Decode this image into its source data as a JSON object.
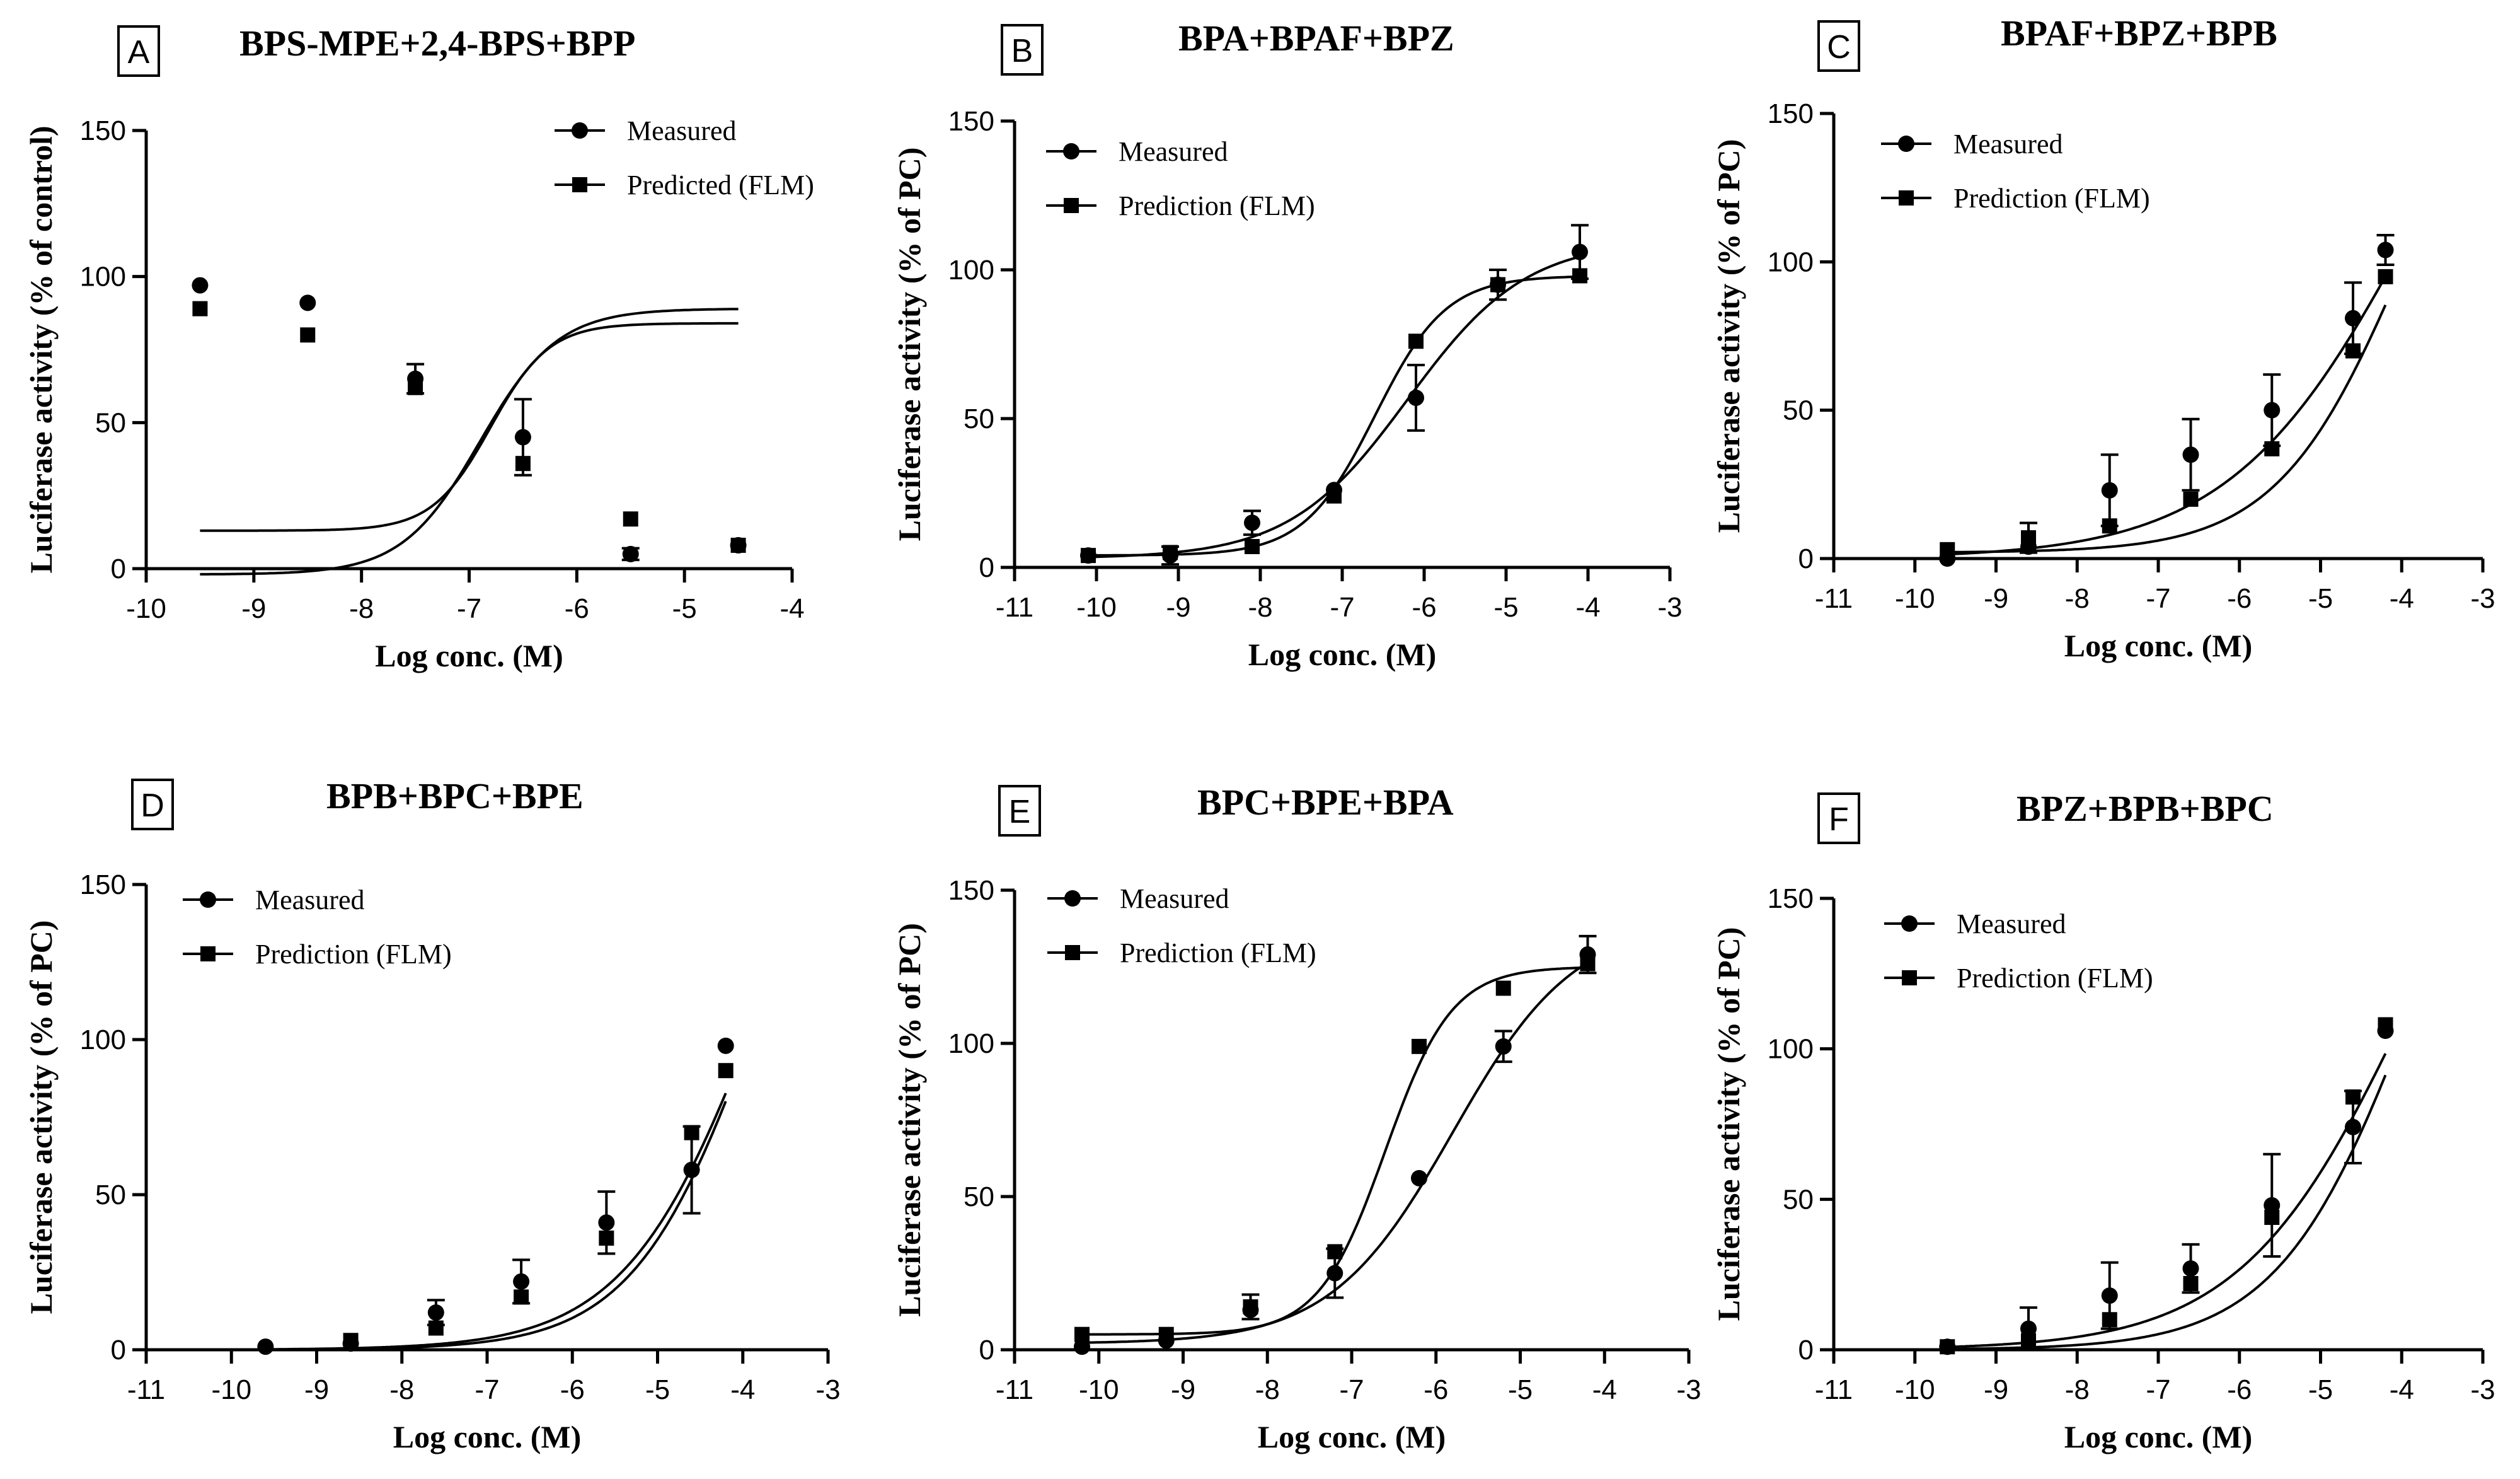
{
  "figure": {
    "curve_color": "#000000",
    "marker_color": "#000000",
    "background": "#ffffff"
  },
  "chart_data": [
    {
      "type": "scatter",
      "panel": "A",
      "title": "BPS-MPE+2,4-BPS+BPP",
      "xlabel": "Log conc. (M)",
      "ylabel": "Luciferase activity (% of control)",
      "xlim": [
        -10,
        -4
      ],
      "ylim": [
        0,
        150
      ],
      "xticks": [
        -10,
        -9,
        -8,
        -7,
        -6,
        -5,
        -4
      ],
      "yticks": [
        0,
        50,
        100,
        150
      ],
      "legend_position": "top-right",
      "series": [
        {
          "name": "Measured",
          "marker": "circle",
          "x": [
            -9.5,
            -8.5,
            -7.5,
            -6.5,
            -5.5,
            -4.5
          ],
          "y": [
            97,
            91,
            65,
            45,
            5,
            8
          ],
          "error": [
            0,
            0,
            5,
            13,
            2,
            0
          ],
          "fit": {
            "model": "hill",
            "bottom": 13,
            "top": 84,
            "logEC50": -6.8,
            "slope": 1.6
          }
        },
        {
          "name": "Predicted (FLM)",
          "marker": "square",
          "x": [
            -9.5,
            -8.5,
            -7.5,
            -6.5,
            -5.5,
            -4.5
          ],
          "y": [
            89,
            80,
            62,
            36,
            17,
            8
          ],
          "error": [
            0,
            0,
            0,
            0,
            0,
            0
          ],
          "fit": {
            "model": "hill",
            "bottom": -2,
            "top": 89,
            "logEC50": -6.9,
            "slope": 1.2
          }
        }
      ]
    },
    {
      "type": "scatter",
      "panel": "B",
      "title": "BPA+BPAF+BPZ",
      "xlabel": "Log conc. (M)",
      "ylabel": "Luciferase activity (% of PC)",
      "xlim": [
        -11,
        -3
      ],
      "ylim": [
        0,
        150
      ],
      "xticks": [
        -11,
        -10,
        -9,
        -8,
        -7,
        -6,
        -5,
        -4,
        -3
      ],
      "yticks": [
        0,
        50,
        100,
        150
      ],
      "legend_position": "top-left",
      "series": [
        {
          "name": "Measured",
          "marker": "circle",
          "x": [
            -10.1,
            -9.1,
            -8.1,
            -7.1,
            -6.1,
            -5.1,
            -4.1
          ],
          "y": [
            4,
            4,
            15,
            26,
            57,
            95,
            106
          ],
          "error": [
            0,
            3,
            4,
            0,
            11,
            5,
            9
          ],
          "fit": {
            "model": "hill",
            "bottom": 3,
            "top": 110,
            "logEC50": -6.2,
            "slope": 0.6
          }
        },
        {
          "name": "Prediction (FLM)",
          "marker": "square",
          "x": [
            -10.1,
            -9.1,
            -8.1,
            -7.1,
            -6.1,
            -5.1,
            -4.1
          ],
          "y": [
            4,
            5,
            7,
            24,
            76,
            95,
            98
          ],
          "error": [
            0,
            0,
            0,
            0,
            0,
            0,
            0
          ],
          "fit": {
            "model": "hill",
            "bottom": 4,
            "top": 98,
            "logEC50": -6.6,
            "slope": 1.0
          }
        }
      ]
    },
    {
      "type": "scatter",
      "panel": "C",
      "title": "BPAF+BPZ+BPB",
      "xlabel": "Log conc. (M)",
      "ylabel": "Luciferase activity (% of PC)",
      "xlim": [
        -11,
        -3
      ],
      "ylim": [
        0,
        150
      ],
      "xticks": [
        -11,
        -10,
        -9,
        -8,
        -7,
        -6,
        -5,
        -4,
        -3
      ],
      "yticks": [
        0,
        50,
        100,
        150
      ],
      "legend_position": "top-left",
      "series": [
        {
          "name": "Measured",
          "marker": "circle",
          "x": [
            -9.6,
            -8.6,
            -7.6,
            -6.6,
            -5.6,
            -4.6,
            -4.2
          ],
          "y": [
            0,
            4,
            23,
            35,
            50,
            81,
            104
          ],
          "error": [
            0,
            0,
            12,
            12,
            12,
            12,
            5
          ],
          "fit": {
            "model": "hill",
            "bottom": 0,
            "top": 230,
            "logEC50": -3.8,
            "slope": 0.38
          }
        },
        {
          "name": "Prediction (FLM)",
          "marker": "square",
          "x": [
            -9.6,
            -8.6,
            -7.6,
            -6.6,
            -5.6,
            -4.6,
            -4.2
          ],
          "y": [
            3,
            7,
            11,
            20,
            37,
            70,
            95
          ],
          "error": [
            0,
            5,
            0,
            0,
            0,
            0,
            0
          ],
          "fit": {
            "model": "hill",
            "bottom": 2,
            "top": 200,
            "logEC50": -3.95,
            "slope": 0.55
          }
        }
      ]
    },
    {
      "type": "scatter",
      "panel": "D",
      "title": "BPB+BPC+BPE",
      "xlabel": "Log conc. (M)",
      "ylabel": "Luciferase activity (% of PC)",
      "xlim": [
        -11,
        -3
      ],
      "ylim": [
        0,
        150
      ],
      "xticks": [
        -11,
        -10,
        -9,
        -8,
        -7,
        -6,
        -5,
        -4,
        -3
      ],
      "yticks": [
        0,
        50,
        100,
        150
      ],
      "legend_position": "top-left",
      "series": [
        {
          "name": "Measured",
          "marker": "circle",
          "x": [
            -9.6,
            -8.6,
            -7.6,
            -6.6,
            -5.6,
            -4.6,
            -4.2
          ],
          "y": [
            1,
            2,
            12,
            22,
            41,
            58,
            98
          ],
          "error": [
            0,
            0,
            4,
            7,
            10,
            14,
            0
          ],
          "fit": {
            "model": "hill",
            "bottom": 0,
            "top": 220,
            "logEC50": -3.8,
            "slope": 0.55
          }
        },
        {
          "name": "Prediction (FLM)",
          "marker": "square",
          "x": [
            -8.6,
            -7.6,
            -6.6,
            -5.6,
            -4.6,
            -4.2
          ],
          "y": [
            3,
            7,
            17,
            36,
            70,
            90
          ],
          "error": [
            0,
            0,
            0,
            0,
            0,
            0
          ],
          "fit": {
            "model": "hill",
            "bottom": 0,
            "top": 210,
            "logEC50": -3.85,
            "slope": 0.6
          }
        }
      ]
    },
    {
      "type": "scatter",
      "panel": "E",
      "title": "BPC+BPE+BPA",
      "xlabel": "Log conc. (M)",
      "ylabel": "Luciferase activity (% of PC)",
      "xlim": [
        -11,
        -3
      ],
      "ylim": [
        0,
        150
      ],
      "xticks": [
        -11,
        -10,
        -9,
        -8,
        -7,
        -6,
        -5,
        -4,
        -3
      ],
      "yticks": [
        0,
        50,
        100,
        150
      ],
      "legend_position": "top-left",
      "series": [
        {
          "name": "Measured",
          "marker": "circle",
          "x": [
            -10.2,
            -9.2,
            -8.2,
            -7.2,
            -6.2,
            -5.2,
            -4.2
          ],
          "y": [
            1,
            3,
            13,
            25,
            56,
            99,
            129
          ],
          "error": [
            0,
            0,
            0,
            8,
            0,
            5,
            6
          ],
          "fit": {
            "model": "hill",
            "bottom": 2,
            "top": 140,
            "logEC50": -5.8,
            "slope": 0.6
          }
        },
        {
          "name": "Prediction (FLM)",
          "marker": "square",
          "x": [
            -10.2,
            -9.2,
            -8.2,
            -7.2,
            -6.2,
            -5.2,
            -4.2
          ],
          "y": [
            5,
            5,
            14,
            32,
            99,
            118,
            126
          ],
          "error": [
            0,
            0,
            4,
            0,
            0,
            0,
            0
          ],
          "fit": {
            "model": "hill",
            "bottom": 5,
            "top": 125,
            "logEC50": -6.6,
            "slope": 1.1
          }
        }
      ]
    },
    {
      "type": "scatter",
      "panel": "F",
      "title": "BPZ+BPB+BPC",
      "xlabel": "Log conc. (M)",
      "ylabel": "Luciferase activity (% of PC)",
      "xlim": [
        -11,
        -3
      ],
      "ylim": [
        0,
        150
      ],
      "xticks": [
        -11,
        -10,
        -9,
        -8,
        -7,
        -6,
        -5,
        -4,
        -3
      ],
      "yticks": [
        0,
        50,
        100,
        150
      ],
      "legend_position": "top-left",
      "series": [
        {
          "name": "Measured",
          "marker": "circle",
          "x": [
            -9.6,
            -8.6,
            -7.6,
            -6.6,
            -5.6,
            -4.6,
            -4.2
          ],
          "y": [
            1,
            7,
            18,
            27,
            48,
            74,
            106
          ],
          "error": [
            0,
            7,
            11,
            8,
            17,
            12,
            0
          ],
          "fit": {
            "model": "hill",
            "bottom": 0,
            "top": 230,
            "logEC50": -3.9,
            "slope": 0.42
          }
        },
        {
          "name": "Prediction (FLM)",
          "marker": "square",
          "x": [
            -9.6,
            -8.6,
            -7.6,
            -6.6,
            -5.6,
            -4.6,
            -4.2
          ],
          "y": [
            1,
            3,
            10,
            22,
            44,
            84,
            108
          ],
          "error": [
            0,
            0,
            0,
            0,
            0,
            0,
            0
          ],
          "fit": {
            "model": "hill",
            "bottom": 0,
            "top": 230,
            "logEC50": -3.85,
            "slope": 0.52
          }
        }
      ]
    }
  ]
}
